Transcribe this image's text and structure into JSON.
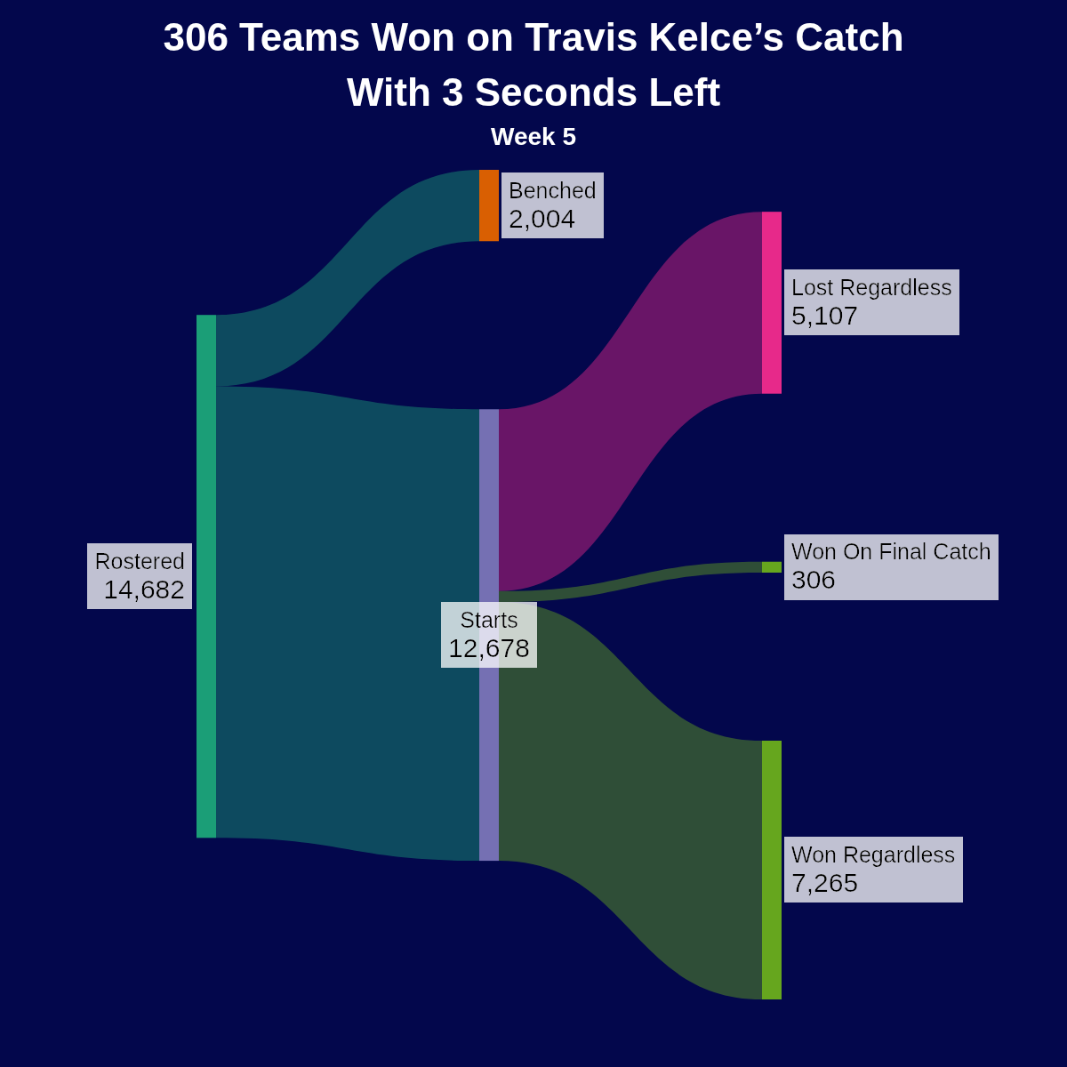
{
  "chart_data": {
    "type": "other",
    "title": "306 Teams Won on Travis Kelce’s Catch With 3 Seconds Left",
    "subtitle": "Week 5",
    "categories": [
      "Rostered",
      "Benched",
      "Starts",
      "Lost Regardless",
      "Won On Final Catch",
      "Won Regardless"
    ],
    "values": [
      14682,
      2004,
      12678,
      5107,
      306,
      7265
    ],
    "value_labels": [
      "14,682",
      "2,004",
      "12,678",
      "5,107",
      "306",
      "7,265"
    ],
    "colors": [
      "#1b9e77",
      "#d95f02",
      "#7570b3",
      "#e7298a",
      "#66a61e",
      "#66a61e"
    ],
    "cells": [
      [
        null,
        true,
        true,
        null,
        null,
        null
      ],
      [
        null,
        null,
        null,
        null,
        null,
        null
      ],
      [
        null,
        null,
        null,
        true,
        true,
        true
      ],
      [
        null,
        null,
        null,
        null,
        null,
        null
      ],
      [
        null,
        null,
        null,
        null,
        null,
        null
      ],
      [
        null,
        null,
        null,
        null,
        null,
        null
      ]
    ]
  }
}
